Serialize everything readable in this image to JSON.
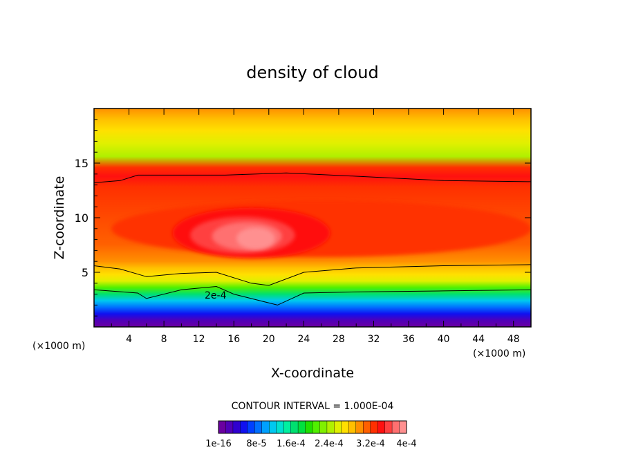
{
  "chart_data": {
    "type": "heatmap",
    "title": "density of cloud",
    "xlabel": "X-coordinate",
    "ylabel": "Z-coordinate",
    "x_unit_left": "(×1000 m)",
    "x_unit_right": "(×1000 m)",
    "xlim": [
      0,
      50
    ],
    "ylim": [
      0,
      20
    ],
    "x_ticks": [
      "4",
      "8",
      "12",
      "16",
      "20",
      "24",
      "28",
      "32",
      "36",
      "40",
      "44",
      "48"
    ],
    "x_tick_values": [
      4,
      8,
      12,
      16,
      20,
      24,
      28,
      32,
      36,
      40,
      44,
      48
    ],
    "y_ticks": [
      "5",
      "10",
      "15"
    ],
    "y_tick_values": [
      5,
      10,
      15
    ],
    "contour_interval_text": "CONTOUR INTERVAL = 1.000E-04",
    "contour_label": "2e-4",
    "colorbar_labels": [
      "1e-16",
      "8e-5",
      "1.6e-4",
      "2.4e-4",
      "3.2e-4",
      "4e-4"
    ],
    "colorbar_colors": [
      "#6a00a0",
      "#5000b8",
      "#3000d0",
      "#1010f0",
      "#0040ff",
      "#0070ff",
      "#00a0ff",
      "#00c8f0",
      "#00e0d0",
      "#00f0a0",
      "#00e070",
      "#00e040",
      "#20e000",
      "#50f000",
      "#80f000",
      "#b0f000",
      "#e0f000",
      "#ffe000",
      "#ffc000",
      "#ff9000",
      "#ff6000",
      "#ff3000",
      "#ff1010",
      "#ff4040",
      "#ff7070",
      "#ff9090"
    ],
    "max_value": 0.0004,
    "core_region": {
      "x_center": 18,
      "z_center": 8.3,
      "value": 0.0004
    },
    "grid": false
  }
}
